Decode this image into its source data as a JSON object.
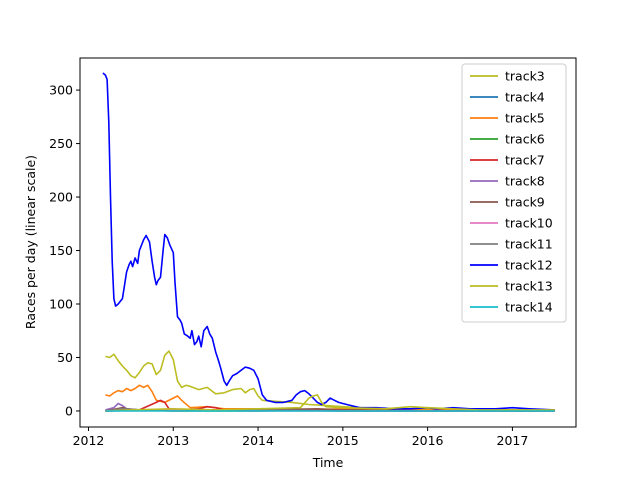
{
  "chart_data": {
    "type": "line",
    "xlabel": "Time",
    "ylabel": "Races per day (linear scale)",
    "xlim": [
      2011.9,
      2017.75
    ],
    "ylim": [
      -15,
      330
    ],
    "x_ticks": [
      {
        "value": 2012,
        "label": "2012"
      },
      {
        "value": 2013,
        "label": "2013"
      },
      {
        "value": 2014,
        "label": "2014"
      },
      {
        "value": 2015,
        "label": "2015"
      },
      {
        "value": 2016,
        "label": "2016"
      },
      {
        "value": 2017,
        "label": "2017"
      }
    ],
    "y_ticks": [
      {
        "value": 0,
        "label": "0"
      },
      {
        "value": 50,
        "label": "50"
      },
      {
        "value": 100,
        "label": "100"
      },
      {
        "value": 150,
        "label": "150"
      },
      {
        "value": 200,
        "label": "200"
      },
      {
        "value": 250,
        "label": "250"
      },
      {
        "value": 300,
        "label": "300"
      }
    ],
    "legend_position": "top-right",
    "grid": false,
    "series": [
      {
        "name": "track3",
        "color": "#bcbd22",
        "points": [
          [
            2012.2,
            51
          ],
          [
            2012.25,
            50
          ],
          [
            2012.3,
            53
          ],
          [
            2012.35,
            47
          ],
          [
            2012.4,
            42
          ],
          [
            2012.45,
            38
          ],
          [
            2012.5,
            33
          ],
          [
            2012.55,
            31
          ],
          [
            2012.6,
            36
          ],
          [
            2012.65,
            42
          ],
          [
            2012.7,
            45
          ],
          [
            2012.75,
            44
          ],
          [
            2012.8,
            34
          ],
          [
            2012.85,
            38
          ],
          [
            2012.9,
            52
          ],
          [
            2012.95,
            56
          ],
          [
            2013.0,
            48
          ],
          [
            2013.05,
            28
          ],
          [
            2013.1,
            22
          ],
          [
            2013.15,
            24
          ],
          [
            2013.2,
            23
          ],
          [
            2013.3,
            20
          ],
          [
            2013.4,
            22
          ],
          [
            2013.45,
            19
          ],
          [
            2013.5,
            16
          ],
          [
            2013.6,
            17
          ],
          [
            2013.7,
            20
          ],
          [
            2013.8,
            21
          ],
          [
            2013.85,
            17
          ],
          [
            2013.9,
            20
          ],
          [
            2013.95,
            21
          ],
          [
            2014.0,
            14
          ],
          [
            2014.05,
            10
          ],
          [
            2014.2,
            9
          ],
          [
            2014.4,
            8
          ],
          [
            2014.6,
            6
          ],
          [
            2014.8,
            5
          ],
          [
            2015.0,
            4
          ],
          [
            2015.2,
            3
          ],
          [
            2015.5,
            2
          ],
          [
            2015.8,
            2
          ],
          [
            2016.0,
            2
          ],
          [
            2016.5,
            1
          ],
          [
            2017.0,
            1
          ],
          [
            2017.5,
            1
          ]
        ]
      },
      {
        "name": "track4",
        "color": "#1f77b4",
        "points": [
          [
            2012.2,
            0
          ],
          [
            2013.0,
            1
          ],
          [
            2014.0,
            1
          ],
          [
            2015.0,
            0
          ],
          [
            2016.0,
            0
          ],
          [
            2017.0,
            0
          ],
          [
            2017.5,
            0
          ]
        ]
      },
      {
        "name": "track5",
        "color": "#ff7f0e",
        "points": [
          [
            2012.2,
            15
          ],
          [
            2012.25,
            14
          ],
          [
            2012.3,
            17
          ],
          [
            2012.35,
            19
          ],
          [
            2012.4,
            18
          ],
          [
            2012.45,
            21
          ],
          [
            2012.5,
            19
          ],
          [
            2012.55,
            21
          ],
          [
            2012.6,
            24
          ],
          [
            2012.65,
            22
          ],
          [
            2012.7,
            24
          ],
          [
            2012.75,
            18
          ],
          [
            2012.8,
            10
          ],
          [
            2012.9,
            8
          ],
          [
            2013.0,
            12
          ],
          [
            2013.05,
            14
          ],
          [
            2013.1,
            10
          ],
          [
            2013.2,
            3
          ],
          [
            2013.4,
            4
          ],
          [
            2013.6,
            2
          ],
          [
            2014.0,
            2
          ],
          [
            2014.5,
            1
          ],
          [
            2015.0,
            2
          ],
          [
            2015.5,
            1
          ],
          [
            2016.0,
            1
          ],
          [
            2017.0,
            1
          ],
          [
            2017.5,
            0
          ]
        ]
      },
      {
        "name": "track6",
        "color": "#2ca02c",
        "points": [
          [
            2012.2,
            0
          ],
          [
            2012.5,
            1
          ],
          [
            2013.0,
            0
          ],
          [
            2014.0,
            0
          ],
          [
            2015.0,
            1
          ],
          [
            2016.0,
            0
          ],
          [
            2017.0,
            0
          ],
          [
            2017.5,
            0
          ]
        ]
      },
      {
        "name": "track7",
        "color": "#d62728",
        "points": [
          [
            2012.2,
            0
          ],
          [
            2012.6,
            1
          ],
          [
            2012.8,
            8
          ],
          [
            2012.85,
            10
          ],
          [
            2012.9,
            8
          ],
          [
            2012.95,
            2
          ],
          [
            2013.1,
            1
          ],
          [
            2013.3,
            2
          ],
          [
            2013.4,
            4
          ],
          [
            2013.5,
            3
          ],
          [
            2013.6,
            1
          ],
          [
            2014.0,
            1
          ],
          [
            2015.0,
            1
          ],
          [
            2016.0,
            0
          ],
          [
            2017.0,
            0
          ],
          [
            2017.5,
            0
          ]
        ]
      },
      {
        "name": "track8",
        "color": "#9467bd",
        "points": [
          [
            2012.2,
            1
          ],
          [
            2012.3,
            3
          ],
          [
            2012.35,
            7
          ],
          [
            2012.4,
            5
          ],
          [
            2012.45,
            2
          ],
          [
            2012.6,
            1
          ],
          [
            2013.0,
            1
          ],
          [
            2014.0,
            1
          ],
          [
            2015.0,
            0
          ],
          [
            2016.0,
            0
          ],
          [
            2017.0,
            0
          ],
          [
            2017.5,
            0
          ]
        ]
      },
      {
        "name": "track9",
        "color": "#8c564b",
        "points": [
          [
            2012.2,
            0
          ],
          [
            2012.4,
            3
          ],
          [
            2012.45,
            2
          ],
          [
            2012.6,
            1
          ],
          [
            2013.0,
            1
          ],
          [
            2014.0,
            1
          ],
          [
            2014.7,
            2
          ],
          [
            2015.0,
            1
          ],
          [
            2016.0,
            0
          ],
          [
            2017.0,
            0
          ],
          [
            2017.5,
            0
          ]
        ]
      },
      {
        "name": "track10",
        "color": "#e377c2",
        "points": [
          [
            2012.2,
            0
          ],
          [
            2013.0,
            1
          ],
          [
            2014.0,
            0
          ],
          [
            2015.0,
            0
          ],
          [
            2016.0,
            0
          ],
          [
            2017.0,
            0
          ],
          [
            2017.5,
            0
          ]
        ]
      },
      {
        "name": "track11",
        "color": "#7f7f7f",
        "points": [
          [
            2012.2,
            0
          ],
          [
            2012.4,
            2
          ],
          [
            2012.6,
            1
          ],
          [
            2013.0,
            0
          ],
          [
            2014.0,
            1
          ],
          [
            2015.0,
            0
          ],
          [
            2016.0,
            0
          ],
          [
            2017.0,
            0
          ],
          [
            2017.5,
            0
          ]
        ]
      },
      {
        "name": "track12",
        "color": "#0000ff",
        "points": [
          [
            2012.17,
            316
          ],
          [
            2012.2,
            314
          ],
          [
            2012.22,
            310
          ],
          [
            2012.24,
            270
          ],
          [
            2012.26,
            200
          ],
          [
            2012.28,
            140
          ],
          [
            2012.3,
            105
          ],
          [
            2012.32,
            98
          ],
          [
            2012.35,
            100
          ],
          [
            2012.38,
            103
          ],
          [
            2012.4,
            105
          ],
          [
            2012.42,
            115
          ],
          [
            2012.45,
            130
          ],
          [
            2012.48,
            137
          ],
          [
            2012.5,
            140
          ],
          [
            2012.52,
            135
          ],
          [
            2012.55,
            143
          ],
          [
            2012.58,
            138
          ],
          [
            2012.6,
            150
          ],
          [
            2012.65,
            160
          ],
          [
            2012.68,
            164
          ],
          [
            2012.72,
            158
          ],
          [
            2012.75,
            140
          ],
          [
            2012.78,
            125
          ],
          [
            2012.8,
            118
          ],
          [
            2012.82,
            122
          ],
          [
            2012.85,
            125
          ],
          [
            2012.88,
            150
          ],
          [
            2012.9,
            165
          ],
          [
            2012.93,
            162
          ],
          [
            2012.96,
            155
          ],
          [
            2013.0,
            148
          ],
          [
            2013.02,
            120
          ],
          [
            2013.05,
            88
          ],
          [
            2013.08,
            85
          ],
          [
            2013.1,
            82
          ],
          [
            2013.13,
            72
          ],
          [
            2013.17,
            70
          ],
          [
            2013.2,
            68
          ],
          [
            2013.22,
            75
          ],
          [
            2013.25,
            62
          ],
          [
            2013.28,
            65
          ],
          [
            2013.3,
            70
          ],
          [
            2013.33,
            60
          ],
          [
            2013.36,
            75
          ],
          [
            2013.4,
            79
          ],
          [
            2013.43,
            72
          ],
          [
            2013.46,
            68
          ],
          [
            2013.5,
            55
          ],
          [
            2013.53,
            48
          ],
          [
            2013.56,
            40
          ],
          [
            2013.6,
            28
          ],
          [
            2013.63,
            24
          ],
          [
            2013.66,
            28
          ],
          [
            2013.7,
            33
          ],
          [
            2013.75,
            35
          ],
          [
            2013.8,
            38
          ],
          [
            2013.85,
            41
          ],
          [
            2013.9,
            40
          ],
          [
            2013.95,
            38
          ],
          [
            2014.0,
            30
          ],
          [
            2014.05,
            15
          ],
          [
            2014.1,
            10
          ],
          [
            2014.2,
            8
          ],
          [
            2014.3,
            8
          ],
          [
            2014.4,
            10
          ],
          [
            2014.45,
            15
          ],
          [
            2014.5,
            18
          ],
          [
            2014.55,
            19
          ],
          [
            2014.6,
            16
          ],
          [
            2014.65,
            12
          ],
          [
            2014.7,
            8
          ],
          [
            2014.75,
            6
          ],
          [
            2014.8,
            8
          ],
          [
            2014.85,
            12
          ],
          [
            2014.9,
            10
          ],
          [
            2014.95,
            8
          ],
          [
            2015.0,
            7
          ],
          [
            2015.1,
            5
          ],
          [
            2015.2,
            3
          ],
          [
            2015.4,
            3
          ],
          [
            2015.6,
            2
          ],
          [
            2015.8,
            2
          ],
          [
            2016.0,
            3
          ],
          [
            2016.1,
            2
          ],
          [
            2016.3,
            3
          ],
          [
            2016.5,
            2
          ],
          [
            2016.8,
            2
          ],
          [
            2017.0,
            3
          ],
          [
            2017.2,
            2
          ],
          [
            2017.5,
            1
          ]
        ]
      },
      {
        "name": "track13",
        "color": "#bcbd22",
        "points": [
          [
            2012.2,
            0
          ],
          [
            2012.5,
            1
          ],
          [
            2013.0,
            2
          ],
          [
            2013.5,
            1
          ],
          [
            2014.0,
            2
          ],
          [
            2014.5,
            3
          ],
          [
            2014.6,
            12
          ],
          [
            2014.65,
            14
          ],
          [
            2014.7,
            15
          ],
          [
            2014.75,
            8
          ],
          [
            2014.8,
            4
          ],
          [
            2015.0,
            3
          ],
          [
            2015.5,
            2
          ],
          [
            2015.8,
            4
          ],
          [
            2016.0,
            3
          ],
          [
            2016.3,
            2
          ],
          [
            2016.6,
            1
          ],
          [
            2017.0,
            1
          ],
          [
            2017.5,
            1
          ]
        ]
      },
      {
        "name": "track14",
        "color": "#17becf",
        "points": [
          [
            2012.2,
            0
          ],
          [
            2013.0,
            0
          ],
          [
            2014.0,
            0
          ],
          [
            2015.0,
            0
          ],
          [
            2016.0,
            0
          ],
          [
            2017.0,
            0
          ],
          [
            2017.5,
            0
          ]
        ]
      }
    ]
  }
}
